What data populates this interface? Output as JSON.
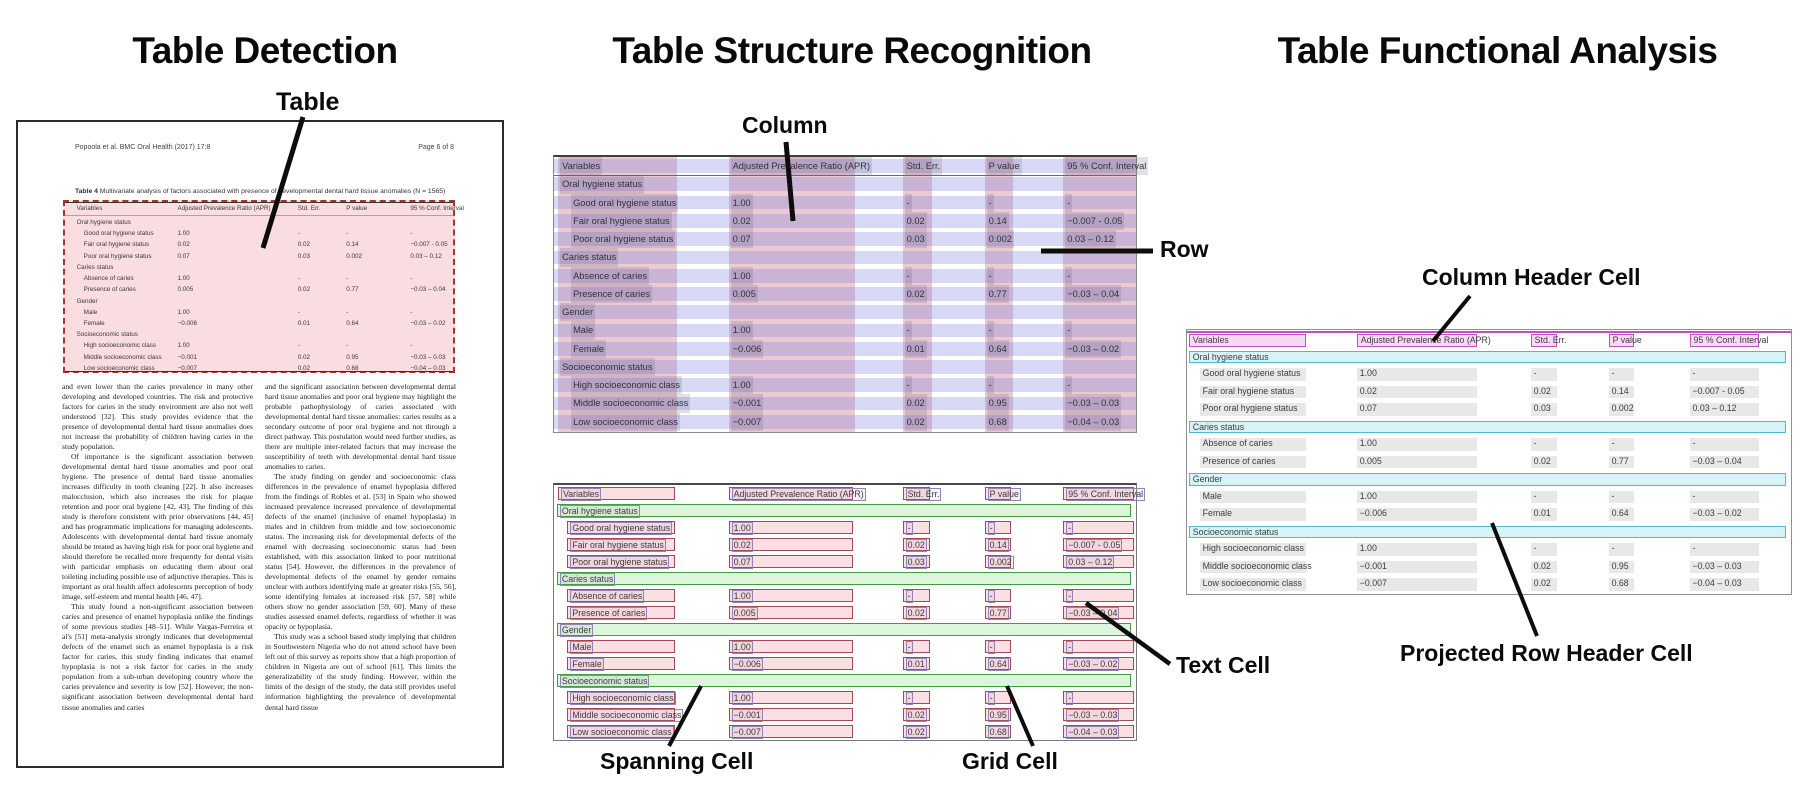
{
  "titles": {
    "detection": "Table Detection",
    "structure": "Table Structure Recognition",
    "functional": "Table Functional Analysis"
  },
  "annotations": {
    "table": "Table",
    "column": "Column",
    "row": "Row",
    "spanning_cell": "Spanning Cell",
    "grid_cell": "Grid Cell",
    "text_cell": "Text Cell",
    "column_header_cell": "Column Header Cell",
    "projected_row_header_cell": "Projected Row Header Cell"
  },
  "document": {
    "running_head": "Popoola et al. BMC Oral Health  (2017) 17:8",
    "page_label": "Page 6 of 8",
    "caption_label": "Table 4",
    "caption_text": " Multivariate analysis of factors associated with presence of developmental dental hard tissue anomalies (N = 1565)",
    "body_left": [
      "and even lower than the caries prevalence in many other developing and developed countries. The risk and protective factors for caries in the study environment are also not well understood [32]. This study provides evidence that the presence of developmental dental hard tissue anomalies does not increase the probability of children having caries in the study population.",
      "Of importance is the significant association between developmental dental hard tissue anomalies and poor oral hygiene. The presence of dental hard tissue anomalies increases difficulty in tooth cleaning [22]. It also increases malocclusion, which also increases the risk for plaque retention and poor oral hygiene [42, 43]. The finding of this study is therefore consistent with prior observations [44, 45] and has programmatic implications for managing adolescents. Adolescents with developmental dental hard tissue anomaly should be treated as having high risk for poor oral hygiene and should therefore be recalled more frequently for dental visits with particular emphasis on educating them about oral toileting including possible use of adjunctive therapies. This is important as oral health affect adolescents perception of body image, self-esteem and mental health [46, 47].",
      "This study found a non-significant association between caries and presence of enamel hypoplasia unlike the findings of some previous studies [48–51]. While Vargas-Ferreira et al's [51] meta-analysis strongly indicates that developmental defects of the enamel such as enamel hypoplasia is a risk factor for caries, this study finding indicates that enamel hypoplasia is not a risk factor for caries in the study population from a sub-urban developing country where the caries prevalence and severity is low [52]. However, the non-significant association between developmental dental hard tissue anomalies and caries"
    ],
    "body_right": [
      "and the significant association between developmental dental hard tissue anomalies and poor oral hygiene may highlight the probable pathophysiology of caries associated with developmental dental hard tissue anomalies: caries results as a secondary outcome of poor oral hygiene and not through a direct pathway. This postulation would need further studies, as there are multiple inter-related factors that may increase the susceptibility of teeth with developmental dental hard tissue anomalies to caries.",
      "The study finding on gender and socioeconomic class differences in the prevalence of enamel hypoplasia differed from the findings of Robles et al. [53] in Spain who showed increased prevalence increased prevalence of developmental defects of the enamel (inclusive of enamel hypoplasia) in males and in children from middle and low socioeconomic status. The increasing risk for developmental defects of the enamel with decreasing socioeconomic status had been established, with this association linked to poor nutritional status [54]. However, the differences in the prevalence of developmental defects of the enamel by gender remains unclear with authors identifying male at greater risks [55, 56], some identifying females at increased risk [57, 58] while others show no gender association [59, 60]. Many of these studies assessed enamel defects, regardless of whether it was opacity or hypoplasia.",
      "This study was a school based study implying that children in Southwestern Nigeria who do not attend school have been left out of this survey as reports show that a high proportion of children in Nigeria are out of school [61]. This limits the generalizability of the study finding. However, within the limits of the design of the study, the data still provides useful information highlighting the prevalence of developmental dental hard tissue"
    ]
  },
  "table": {
    "headers": [
      "Variables",
      "Adjusted Prevalence Ratio (APR)",
      "Std. Err.",
      "P value",
      "95 % Conf. Interval"
    ],
    "rows": [
      {
        "type": "section",
        "label": "Oral hygiene status"
      },
      {
        "type": "data",
        "label": "Good oral hygiene status",
        "apr": "1.00",
        "se": "-",
        "p": "-",
        "ci": "-"
      },
      {
        "type": "data",
        "label": "Fair oral hygiene status",
        "apr": "0.02",
        "se": "0.02",
        "p": "0.14",
        "ci": "−0.007 - 0.05"
      },
      {
        "type": "data",
        "label": "Poor oral hygiene status",
        "apr": "0.07",
        "se": "0.03",
        "p": "0.002",
        "ci": "0.03 – 0.12"
      },
      {
        "type": "section",
        "label": "Caries status"
      },
      {
        "type": "data",
        "label": "Absence of caries",
        "apr": "1.00",
        "se": "-",
        "p": "-",
        "ci": "-"
      },
      {
        "type": "data",
        "label": "Presence of caries",
        "apr": "0.005",
        "se": "0.02",
        "p": "0.77",
        "ci": "−0.03 – 0.04"
      },
      {
        "type": "section",
        "label": "Gender"
      },
      {
        "type": "data",
        "label": "Male",
        "apr": "1.00",
        "se": "-",
        "p": "-",
        "ci": "-"
      },
      {
        "type": "data",
        "label": "Female",
        "apr": "−0.006",
        "se": "0.01",
        "p": "0.64",
        "ci": "−0.03 – 0.02"
      },
      {
        "type": "section",
        "label": "Socioeconomic status"
      },
      {
        "type": "data",
        "label": "High socioeconomic class",
        "apr": "1.00",
        "se": "-",
        "p": "-",
        "ci": "-"
      },
      {
        "type": "data",
        "label": "Middle socioeconomic class",
        "apr": "−0.001",
        "se": "0.02",
        "p": "0.95",
        "ci": "−0.03 – 0.03"
      },
      {
        "type": "data",
        "label": "Low socioeconomic class",
        "apr": "−0.007",
        "se": "0.02",
        "p": "0.68",
        "ci": "−0.04 – 0.03"
      }
    ]
  },
  "colors": {
    "detection_border": "#a93232",
    "detection_fill": "rgba(231,84,98,0.20)",
    "column_overlay": "rgba(198,93,115,0.33)",
    "row_overlay": "rgba(122,128,224,0.30)",
    "text_highlight": "rgba(75,60,105,0.16)",
    "grid_cell_border": "#a34a55",
    "grid_cell_fill": "#fbe0e3",
    "spanning_border": "#3f9e3f",
    "spanning_fill": "#ddf4dd",
    "text_cell_border": "#9583b5",
    "header_cell_border": "#bf52bf",
    "header_cell_fill": "#f8d9f4",
    "projected_border": "#52b9c8",
    "projected_fill": "#d8f3f5",
    "data_cell_fill": "#e8e8e8"
  }
}
